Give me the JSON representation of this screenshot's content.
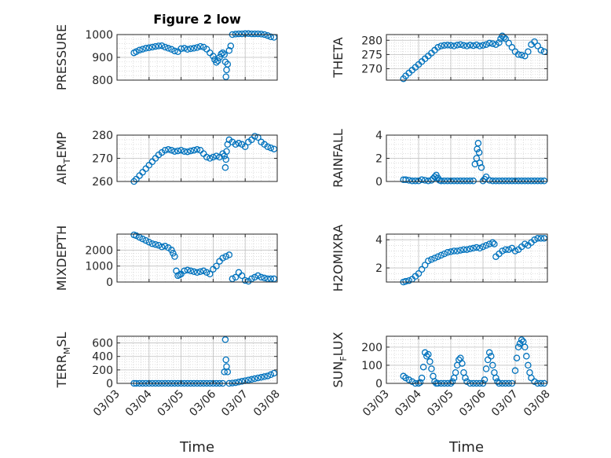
{
  "figure": {
    "title": "Figure 2 low",
    "marker_color": "#0072BD"
  },
  "chart_data": [
    {
      "type": "scatter",
      "ylabel": "PRESSURE",
      "ylabel_html": [
        "PRESSURE"
      ],
      "ylim": [
        800,
        1000
      ],
      "yticks": [
        800,
        900,
        1000
      ],
      "ytick_labels": [
        "800",
        "900",
        "1000"
      ],
      "xlim": [
        3.0,
        8.0
      ],
      "xticks": [
        3,
        4,
        5,
        6,
        7,
        8
      ],
      "grid": true,
      "x": [
        3.53,
        3.6,
        3.7,
        3.8,
        3.9,
        4.0,
        4.1,
        4.2,
        4.3,
        4.4,
        4.5,
        4.6,
        4.7,
        4.8,
        4.9,
        5.0,
        5.1,
        5.2,
        5.3,
        5.4,
        5.5,
        5.6,
        5.7,
        5.8,
        5.9,
        6.0,
        6.05,
        6.1,
        6.15,
        6.2,
        6.25,
        6.3,
        6.35,
        6.38,
        6.4,
        6.42,
        6.45,
        6.5,
        6.55,
        6.6,
        6.7,
        6.8,
        6.9,
        7.0,
        7.1,
        7.2,
        7.3,
        7.4,
        7.5,
        7.6,
        7.7,
        7.8,
        7.9
      ],
      "y": [
        920,
        925,
        932,
        936,
        940,
        942,
        945,
        948,
        950,
        951,
        945,
        940,
        935,
        928,
        925,
        938,
        940,
        935,
        938,
        940,
        943,
        948,
        945,
        936,
        920,
        905,
        890,
        878,
        885,
        900,
        915,
        920,
        912,
        880,
        815,
        845,
        870,
        930,
        950,
        1000,
        1002,
        1003,
        1003,
        1004,
        1004,
        1003,
        1003,
        1003,
        1002,
        1000,
        996,
        990,
        988
      ]
    },
    {
      "type": "scatter",
      "ylabel": "THETA",
      "ylabel_html": [
        "THETA"
      ],
      "ylim": [
        266,
        282
      ],
      "yticks": [
        270,
        275,
        280
      ],
      "ytick_labels": [
        "270",
        "275",
        "280"
      ],
      "xlim": [
        3.0,
        8.0
      ],
      "xticks": [
        3,
        4,
        5,
        6,
        7,
        8
      ],
      "grid": true,
      "x": [
        3.53,
        3.6,
        3.7,
        3.8,
        3.9,
        4.0,
        4.1,
        4.2,
        4.3,
        4.4,
        4.5,
        4.6,
        4.7,
        4.8,
        4.9,
        5.0,
        5.1,
        5.2,
        5.3,
        5.4,
        5.5,
        5.6,
        5.7,
        5.8,
        5.9,
        6.0,
        6.1,
        6.2,
        6.3,
        6.4,
        6.5,
        6.55,
        6.6,
        6.65,
        6.7,
        6.8,
        6.9,
        7.0,
        7.1,
        7.2,
        7.3,
        7.4,
        7.5,
        7.6,
        7.7,
        7.8,
        7.9
      ],
      "y": [
        266.5,
        267.5,
        268.5,
        269.5,
        270.5,
        271.5,
        272.5,
        273.5,
        274.5,
        275.5,
        276.5,
        277.5,
        278,
        278.2,
        278.3,
        278.2,
        278,
        278.3,
        278.5,
        278.2,
        278,
        278.3,
        278.1,
        278.4,
        278,
        278.2,
        278.5,
        279,
        278.8,
        278.5,
        279.2,
        280.5,
        281.5,
        281,
        280.5,
        279,
        277.5,
        276,
        275,
        274.8,
        274.5,
        276,
        278.5,
        279.5,
        278,
        276.5,
        276
      ]
    },
    {
      "type": "scatter",
      "ylabel": "AIR_TEMP",
      "ylabel_html": [
        "AIR",
        "T",
        "EMP"
      ],
      "ylim": [
        260,
        280
      ],
      "yticks": [
        260,
        270,
        280
      ],
      "ytick_labels": [
        "260",
        "270",
        "280"
      ],
      "xlim": [
        3.0,
        8.0
      ],
      "xticks": [
        3,
        4,
        5,
        6,
        7,
        8
      ],
      "grid": true,
      "x": [
        3.53,
        3.6,
        3.7,
        3.8,
        3.9,
        4.0,
        4.1,
        4.2,
        4.3,
        4.4,
        4.5,
        4.6,
        4.7,
        4.8,
        4.9,
        5.0,
        5.1,
        5.2,
        5.3,
        5.4,
        5.5,
        5.6,
        5.7,
        5.8,
        5.9,
        6.0,
        6.1,
        6.2,
        6.3,
        6.35,
        6.38,
        6.4,
        6.42,
        6.45,
        6.5,
        6.6,
        6.7,
        6.8,
        6.9,
        7.0,
        7.1,
        7.2,
        7.3,
        7.4,
        7.5,
        7.6,
        7.7,
        7.8,
        7.9
      ],
      "y": [
        260,
        261,
        262.5,
        264,
        265.5,
        267,
        268.5,
        270,
        271.5,
        272.5,
        273.5,
        273.8,
        273.5,
        273,
        273.2,
        273.5,
        273,
        272.8,
        273.2,
        273.5,
        273.8,
        273.5,
        272,
        270.5,
        270,
        270.5,
        271,
        270.5,
        272,
        271,
        266,
        269.5,
        273,
        276,
        278,
        277,
        276,
        276.5,
        276,
        275,
        277,
        278,
        279.5,
        279,
        277,
        276,
        275,
        274.5,
        274
      ]
    },
    {
      "type": "scatter",
      "ylabel": "RAINFALL",
      "ylabel_html": [
        "RAINFALL"
      ],
      "ylim": [
        0,
        4
      ],
      "yticks": [
        0,
        2,
        4
      ],
      "ytick_labels": [
        "0",
        "2",
        "4"
      ],
      "xlim": [
        3.0,
        8.0
      ],
      "xticks": [
        3,
        4,
        5,
        6,
        7,
        8
      ],
      "grid": true,
      "x": [
        3.53,
        3.6,
        3.7,
        3.8,
        3.9,
        4.0,
        4.1,
        4.2,
        4.3,
        4.4,
        4.45,
        4.5,
        4.55,
        4.6,
        4.65,
        4.7,
        4.8,
        4.9,
        5.0,
        5.1,
        5.2,
        5.3,
        5.4,
        5.5,
        5.6,
        5.7,
        5.75,
        5.8,
        5.82,
        5.85,
        5.88,
        5.9,
        5.95,
        6.0,
        6.05,
        6.1,
        6.2,
        6.3,
        6.4,
        6.5,
        6.6,
        6.7,
        6.8,
        6.9,
        7.0,
        7.1,
        7.2,
        7.3,
        7.4,
        7.5,
        7.6,
        7.7,
        7.8,
        7.9
      ],
      "y": [
        0.15,
        0.15,
        0.1,
        0.05,
        0.05,
        0.05,
        0.15,
        0.1,
        0.05,
        0.1,
        0.25,
        0.4,
        0.55,
        0.3,
        0.1,
        0.05,
        0.05,
        0.05,
        0.05,
        0.05,
        0.05,
        0.05,
        0.05,
        0.05,
        0.05,
        0.05,
        1.5,
        2.0,
        2.8,
        3.3,
        2.5,
        1.6,
        1.2,
        0.05,
        0.2,
        0.4,
        0.1,
        0.05,
        0.05,
        0.05,
        0.05,
        0.05,
        0.05,
        0.05,
        0.05,
        0.05,
        0.05,
        0.05,
        0.05,
        0.05,
        0.05,
        0.05,
        0.05,
        0.05
      ]
    },
    {
      "type": "scatter",
      "ylabel": "MIXDEPTH",
      "ylabel_html": [
        "MIXDEPTH"
      ],
      "ylim": [
        0,
        3000
      ],
      "yticks": [
        0,
        1000,
        2000
      ],
      "ytick_labels": [
        "0",
        "1000",
        "2000"
      ],
      "xlim": [
        3.0,
        8.0
      ],
      "xticks": [
        3,
        4,
        5,
        6,
        7,
        8
      ],
      "grid": true,
      "x": [
        3.53,
        3.6,
        3.7,
        3.8,
        3.9,
        4.0,
        4.1,
        4.2,
        4.3,
        4.4,
        4.5,
        4.6,
        4.7,
        4.75,
        4.8,
        4.85,
        4.9,
        4.95,
        5.0,
        5.1,
        5.2,
        5.3,
        5.4,
        5.5,
        5.6,
        5.7,
        5.8,
        5.9,
        6.0,
        6.1,
        6.2,
        6.3,
        6.4,
        6.5,
        6.6,
        6.7,
        6.8,
        6.9,
        7.0,
        7.1,
        7.2,
        7.3,
        7.4,
        7.5,
        7.6,
        7.7,
        7.8,
        7.9
      ],
      "y": [
        2950,
        2900,
        2800,
        2700,
        2600,
        2500,
        2400,
        2350,
        2300,
        2200,
        2250,
        2150,
        2000,
        1800,
        1600,
        700,
        400,
        450,
        500,
        700,
        750,
        700,
        650,
        600,
        650,
        700,
        600,
        500,
        800,
        1000,
        1300,
        1500,
        1600,
        1700,
        200,
        300,
        600,
        400,
        100,
        50,
        200,
        300,
        400,
        300,
        250,
        200,
        200,
        200
      ]
    },
    {
      "type": "scatter",
      "ylabel": "H2OMIXRA",
      "ylabel_html": [
        "H2OMIXRA"
      ],
      "ylim": [
        1,
        4.4
      ],
      "yticks": [
        2,
        4
      ],
      "ytick_labels": [
        "2",
        "4"
      ],
      "xlim": [
        3.0,
        8.0
      ],
      "xticks": [
        3,
        4,
        5,
        6,
        7,
        8
      ],
      "grid": true,
      "x": [
        3.53,
        3.6,
        3.7,
        3.8,
        3.9,
        4.0,
        4.1,
        4.2,
        4.3,
        4.4,
        4.5,
        4.6,
        4.7,
        4.8,
        4.9,
        5.0,
        5.1,
        5.2,
        5.3,
        5.4,
        5.5,
        5.6,
        5.7,
        5.8,
        5.9,
        6.0,
        6.1,
        6.2,
        6.3,
        6.35,
        6.4,
        6.5,
        6.6,
        6.7,
        6.8,
        6.9,
        7.0,
        7.1,
        7.2,
        7.3,
        7.4,
        7.5,
        7.6,
        7.7,
        7.8,
        7.9
      ],
      "y": [
        1.0,
        1.05,
        1.1,
        1.2,
        1.4,
        1.6,
        1.9,
        2.2,
        2.5,
        2.6,
        2.7,
        2.8,
        2.9,
        3.0,
        3.1,
        3.15,
        3.2,
        3.2,
        3.25,
        3.3,
        3.3,
        3.35,
        3.4,
        3.45,
        3.4,
        3.5,
        3.6,
        3.7,
        3.8,
        3.7,
        2.8,
        3.0,
        3.2,
        3.3,
        3.3,
        3.4,
        3.2,
        3.3,
        3.5,
        3.7,
        3.6,
        3.8,
        4.0,
        4.1,
        4.1,
        4.1
      ]
    },
    {
      "type": "scatter",
      "ylabel": "TERR_MSL",
      "ylabel_html": [
        "TERR",
        "M",
        "SL"
      ],
      "ylim": [
        0,
        700
      ],
      "yticks": [
        0,
        200,
        400,
        600
      ],
      "ytick_labels": [
        "0",
        "200",
        "400",
        "600"
      ],
      "xlim": [
        3.0,
        8.0
      ],
      "xticks": [
        3,
        4,
        5,
        6,
        7,
        8
      ],
      "grid": true,
      "x": [
        3.53,
        3.6,
        3.7,
        3.8,
        3.9,
        4.0,
        4.1,
        4.2,
        4.3,
        4.4,
        4.5,
        4.6,
        4.7,
        4.8,
        4.9,
        5.0,
        5.1,
        5.2,
        5.3,
        5.4,
        5.5,
        5.6,
        5.7,
        5.8,
        5.9,
        6.0,
        6.1,
        6.2,
        6.3,
        6.35,
        6.38,
        6.4,
        6.42,
        6.45,
        6.5,
        6.6,
        6.7,
        6.8,
        6.9,
        7.0,
        7.1,
        7.2,
        7.3,
        7.4,
        7.5,
        7.6,
        7.7,
        7.8,
        7.9
      ],
      "y": [
        0,
        0,
        0,
        0,
        0,
        0,
        0,
        0,
        0,
        0,
        0,
        0,
        0,
        0,
        0,
        0,
        0,
        0,
        0,
        0,
        0,
        0,
        0,
        0,
        0,
        0,
        0,
        0,
        0,
        170,
        650,
        350,
        250,
        170,
        0,
        5,
        10,
        20,
        30,
        40,
        50,
        60,
        70,
        80,
        90,
        100,
        110,
        130,
        150
      ]
    },
    {
      "type": "scatter",
      "ylabel": "SUN_FLUX",
      "ylabel_html": [
        "SUN",
        "F",
        "LUX"
      ],
      "ylim": [
        0,
        260
      ],
      "yticks": [
        0,
        100,
        200
      ],
      "ytick_labels": [
        "0",
        "100",
        "200"
      ],
      "xlim": [
        3.0,
        8.0
      ],
      "xticks": [
        3,
        4,
        5,
        6,
        7,
        8
      ],
      "grid": true,
      "x": [
        3.53,
        3.6,
        3.7,
        3.8,
        3.9,
        4.0,
        4.05,
        4.1,
        4.15,
        4.2,
        4.25,
        4.3,
        4.35,
        4.4,
        4.45,
        4.5,
        4.55,
        4.6,
        4.7,
        4.8,
        4.9,
        5.0,
        5.05,
        5.1,
        5.15,
        5.2,
        5.25,
        5.3,
        5.35,
        5.4,
        5.45,
        5.5,
        5.6,
        5.7,
        5.8,
        5.9,
        6.0,
        6.05,
        6.1,
        6.15,
        6.2,
        6.25,
        6.3,
        6.35,
        6.4,
        6.45,
        6.5,
        6.6,
        6.7,
        6.8,
        6.9,
        7.0,
        7.05,
        7.1,
        7.15,
        7.2,
        7.25,
        7.3,
        7.35,
        7.4,
        7.45,
        7.5,
        7.6,
        7.7,
        7.8,
        7.9
      ],
      "y": [
        40,
        30,
        20,
        10,
        0,
        0,
        5,
        30,
        90,
        170,
        150,
        160,
        120,
        80,
        40,
        10,
        0,
        0,
        0,
        0,
        0,
        0,
        10,
        30,
        60,
        100,
        130,
        140,
        110,
        60,
        30,
        10,
        0,
        0,
        0,
        0,
        0,
        20,
        80,
        130,
        170,
        150,
        100,
        60,
        30,
        10,
        0,
        0,
        0,
        0,
        0,
        70,
        140,
        200,
        220,
        240,
        230,
        200,
        150,
        100,
        60,
        30,
        10,
        0,
        0,
        0
      ]
    }
  ],
  "xaxis": {
    "label": "Time",
    "tick_labels": [
      "03/03",
      "03/04",
      "03/05",
      "03/06",
      "03/07",
      "03/08"
    ]
  }
}
